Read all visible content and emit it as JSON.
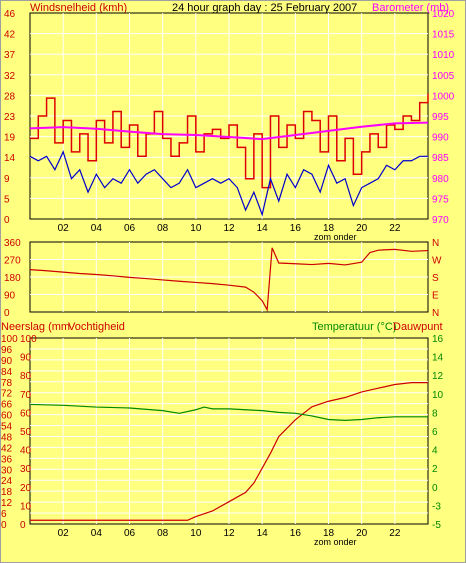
{
  "header": {
    "left_label": "Windsnelheid (kmh)",
    "title": "24 hour graph day : 25 February 2007",
    "right_label": "Barometer (mb)"
  },
  "colors": {
    "background": "#ffff80",
    "wind_gust": "#dd0000",
    "wind_avg": "#0000cc",
    "barometer": "#ff00ff",
    "direction": "#cc0000",
    "rain": "#cc0000",
    "humidity": "#cc0000",
    "temperature": "#008800",
    "dewpoint": "#cc0000",
    "grid": "#ffffff"
  },
  "chart_data": [
    {
      "type": "line",
      "name": "wind-barometer",
      "x_ticks": [
        "02",
        "04",
        "06",
        "08",
        "10",
        "12",
        "14",
        "16",
        "18",
        "20",
        "22"
      ],
      "x_caption": "zom onder",
      "xlim": [
        0,
        24
      ],
      "ylabel_left": "Windsnelheid (kmh)",
      "ylabel_right": "Barometer (mb)",
      "y_left_ticks": [
        "0",
        "5",
        "9",
        "14",
        "19",
        "23",
        "28",
        "32",
        "37",
        "42",
        "46"
      ],
      "y_left_lim": [
        0,
        46
      ],
      "y_right_ticks": [
        "970",
        "975",
        "980",
        "985",
        "990",
        "995",
        "1000",
        "1005",
        "1010",
        "1015",
        "1020"
      ],
      "y_right_lim": [
        970,
        1020
      ],
      "series": [
        {
          "name": "gust",
          "x": [
            0,
            0.5,
            1,
            1.5,
            2,
            2.5,
            3,
            3.5,
            4,
            4.5,
            5,
            5.5,
            6,
            6.5,
            7,
            7.5,
            8,
            8.5,
            9,
            9.5,
            10,
            10.5,
            11,
            11.5,
            12,
            12.5,
            13,
            13.5,
            14,
            14.5,
            15,
            15.5,
            16,
            16.5,
            17,
            17.5,
            18,
            18.5,
            19,
            19.5,
            20,
            20.5,
            21,
            21.5,
            22,
            22.5,
            23,
            23.5,
            24
          ],
          "values": [
            18,
            23,
            27,
            17,
            22,
            15,
            19,
            13,
            22,
            17,
            24,
            16,
            21,
            14,
            19,
            24,
            18,
            14,
            17,
            23,
            15,
            19,
            20,
            18,
            21,
            16,
            9,
            19,
            7,
            23,
            16,
            21,
            18,
            24,
            22,
            15,
            23,
            13,
            18,
            10,
            15,
            19,
            16,
            21,
            20,
            23,
            22,
            26,
            28
          ]
        },
        {
          "name": "average",
          "x": [
            0,
            0.5,
            1,
            1.5,
            2,
            2.5,
            3,
            3.5,
            4,
            4.5,
            5,
            5.5,
            6,
            6.5,
            7,
            7.5,
            8,
            8.5,
            9,
            9.5,
            10,
            10.5,
            11,
            11.5,
            12,
            12.5,
            13,
            13.5,
            14,
            14.5,
            15,
            15.5,
            16,
            16.5,
            17,
            17.5,
            18,
            18.5,
            19,
            19.5,
            20,
            20.5,
            21,
            21.5,
            22,
            22.5,
            23,
            23.5,
            24
          ],
          "values": [
            14,
            13,
            14,
            11,
            15,
            9,
            11,
            6,
            10,
            7,
            9,
            8,
            11,
            8,
            10,
            11,
            9,
            7,
            8,
            11,
            7,
            8,
            9,
            8,
            9,
            7,
            2,
            6,
            1,
            9,
            4,
            10,
            7,
            11,
            10,
            6,
            12,
            8,
            9,
            3,
            7,
            8,
            9,
            12,
            11,
            13,
            13,
            14,
            14
          ]
        },
        {
          "name": "barometer",
          "x": [
            0,
            2,
            4,
            6,
            8,
            10,
            12,
            14,
            16,
            18,
            20,
            22,
            24
          ],
          "values": [
            992.0,
            992.3,
            991.9,
            991.2,
            990.6,
            990.4,
            989.9,
            989.4,
            990.4,
            991.4,
            992.4,
            993.2,
            993.4
          ]
        }
      ]
    },
    {
      "type": "line",
      "name": "wind-direction",
      "xlim": [
        0,
        24
      ],
      "y_left_ticks": [
        "0",
        "90",
        "180",
        "270",
        "360"
      ],
      "y_left_lim": [
        0,
        360
      ],
      "y_right_ticks": [
        "N",
        "E",
        "S",
        "W",
        "N"
      ],
      "series": [
        {
          "name": "direction",
          "x": [
            0,
            1,
            2,
            3,
            4,
            5,
            6,
            7,
            8,
            9,
            10,
            11,
            12,
            13,
            13.5,
            14,
            14.3,
            14.6,
            15,
            16,
            17,
            18,
            19,
            20,
            20.5,
            21,
            22,
            23,
            24
          ],
          "values": [
            218,
            212,
            205,
            198,
            193,
            186,
            178,
            172,
            165,
            158,
            152,
            146,
            138,
            128,
            102,
            58,
            12,
            330,
            252,
            248,
            244,
            250,
            242,
            256,
            306,
            318,
            322,
            312,
            316
          ]
        }
      ]
    },
    {
      "type": "line",
      "name": "rain-humidity-temperature",
      "x_ticks": [
        "02",
        "04",
        "06",
        "08",
        "10",
        "12",
        "14",
        "16",
        "18",
        "20",
        "22"
      ],
      "x_caption": "zom onder",
      "xlim": [
        0,
        24
      ],
      "ylabel_left_1": "Neerslag (mm",
      "ylabel_left_2": "Vochtigheid",
      "ylabel_right_1": "Temperatuur (°C)",
      "ylabel_right_2": "Dauwpunt",
      "y_left_ticks": [
        "0",
        "6",
        "12",
        "18",
        "24",
        "30",
        "36",
        "42",
        "48",
        "54",
        "60",
        "66",
        "72",
        "78",
        "84",
        "90",
        "96",
        "100"
      ],
      "y_left_lim": [
        0,
        100
      ],
      "y_left2_ticks": [
        "0",
        "10",
        "20",
        "30",
        "40",
        "50",
        "60",
        "70",
        "80",
        "90",
        "100"
      ],
      "y_right_ticks": [
        "-5",
        "-3",
        "0",
        "2",
        "4",
        "6",
        "8",
        "10",
        "12",
        "14",
        "16"
      ],
      "y_right_lim": [
        -5,
        16
      ],
      "series": [
        {
          "name": "rain",
          "x": [
            0,
            2,
            4,
            6,
            8,
            9.5,
            10,
            11,
            12,
            13,
            13.5,
            14,
            14.5,
            15,
            16,
            17,
            18,
            19,
            20,
            21,
            22,
            23,
            24
          ],
          "values": [
            2,
            2,
            2,
            2,
            2,
            2,
            4,
            7,
            12,
            17,
            22,
            30,
            38,
            47,
            56,
            63,
            66,
            68,
            71,
            73,
            75,
            76,
            76
          ]
        },
        {
          "name": "temperature",
          "x": [
            0,
            2,
            4,
            6,
            8,
            9,
            10,
            10.5,
            11,
            12,
            13,
            14,
            15,
            16,
            17,
            18,
            19,
            20,
            21,
            22,
            23,
            24
          ],
          "values": [
            8.5,
            8.4,
            8.2,
            8.1,
            7.8,
            7.5,
            7.9,
            8.2,
            8.0,
            8.0,
            7.9,
            7.8,
            7.6,
            7.5,
            7.2,
            6.8,
            6.7,
            6.8,
            7.0,
            7.1,
            7.1,
            7.1
          ]
        }
      ]
    }
  ]
}
